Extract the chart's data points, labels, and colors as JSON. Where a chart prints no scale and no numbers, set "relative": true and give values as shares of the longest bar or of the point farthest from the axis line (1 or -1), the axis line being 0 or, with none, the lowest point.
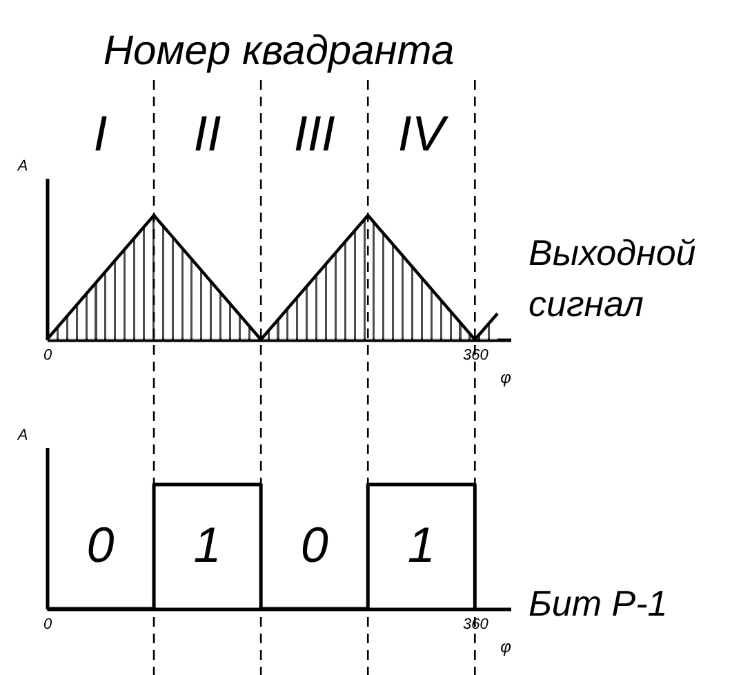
{
  "chart_data": [
    {
      "type": "area",
      "title": "Номер квадранта",
      "xlabel": "φ",
      "ylabel": "A",
      "relative": true,
      "xlim": [
        0,
        390
      ],
      "xticks": [
        0,
        360
      ],
      "x": [
        0,
        90,
        180,
        270,
        360,
        379
      ],
      "series": [
        {
          "name": "Выходной сигнал",
          "color": "#000000",
          "values": [
            0,
            1,
            0,
            1,
            0,
            0.21
          ]
        }
      ],
      "annotations": [
        "I",
        "II",
        "III",
        "IV"
      ],
      "ref_lines": [
        {
          "axis": "x",
          "value": 90,
          "color": "#000000",
          "line_style": "dashed"
        },
        {
          "axis": "x",
          "value": 180,
          "color": "#000000",
          "line_style": "dashed"
        },
        {
          "axis": "x",
          "value": 270,
          "color": "#000000",
          "line_style": "dashed"
        },
        {
          "axis": "x",
          "value": 360,
          "color": "#000000",
          "line_style": "dashed"
        }
      ]
    },
    {
      "type": "step",
      "xlabel": "φ",
      "ylabel": "A",
      "relative": true,
      "xlim": [
        0,
        390
      ],
      "xticks": [
        0,
        360
      ],
      "x": [
        0,
        90,
        180,
        270,
        360
      ],
      "series": [
        {
          "name": "Бит P-1",
          "color": "#000000",
          "values": [
            0,
            1,
            0,
            1,
            0
          ]
        }
      ],
      "annotations": [
        "0",
        "1",
        "0",
        "1"
      ],
      "ref_lines": [
        {
          "axis": "x",
          "value": 90,
          "color": "#000000",
          "line_style": "dashed"
        },
        {
          "axis": "x",
          "value": 180,
          "color": "#000000",
          "line_style": "dashed"
        },
        {
          "axis": "x",
          "value": 270,
          "color": "#000000",
          "line_style": "dashed"
        },
        {
          "axis": "x",
          "value": 360,
          "color": "#000000",
          "line_style": "dashed"
        }
      ]
    }
  ]
}
